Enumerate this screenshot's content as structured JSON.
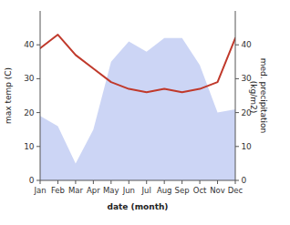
{
  "chart_data": {
    "type": "line",
    "xlabel": "date (month)",
    "ylabel": "max temp (C)",
    "y2label": "med. precipitation\n (kg/m2)",
    "categories": [
      "Jan",
      "Feb",
      "Mar",
      "Apr",
      "May",
      "Jun",
      "Jul",
      "Aug",
      "Sep",
      "Oct",
      "Nov",
      "Dec"
    ],
    "series": [
      {
        "type": "line",
        "color": "#c0392b",
        "values": [
          39,
          43,
          37,
          33,
          29,
          27,
          26,
          27,
          26,
          27,
          29,
          42
        ]
      },
      {
        "type": "area",
        "color": "#b0bef0",
        "axis": "y2",
        "values": [
          19,
          16,
          5,
          15,
          35,
          41,
          38,
          42,
          42,
          34,
          20,
          21
        ]
      }
    ],
    "ylim": [
      0,
      50
    ],
    "yticks": [
      0,
      10,
      20,
      30,
      40
    ],
    "y2lim": [
      0,
      50
    ],
    "y2ticks": [
      0,
      10,
      20,
      30,
      40
    ]
  }
}
